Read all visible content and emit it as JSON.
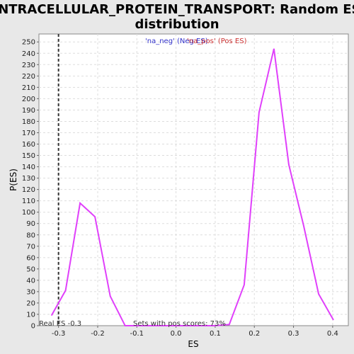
{
  "chart_data": {
    "type": "line",
    "title_line1": "INTRACELLULAR_PROTEIN_TRANSPORT: Random ES",
    "title_line2": "distribution",
    "xlabel": "ES",
    "ylabel": "P(ES)",
    "xlim": [
      -0.35,
      0.44
    ],
    "ylim": [
      0,
      257
    ],
    "xticks": [
      -0.3,
      -0.2,
      -0.1,
      0.0,
      0.1,
      0.2,
      0.3,
      0.4
    ],
    "xtick_labels": [
      "-0.3",
      "-0.2",
      "-0.1",
      "0.0",
      "0.1",
      "0.2",
      "0.3",
      "0.4"
    ],
    "yticks": [
      0,
      10,
      20,
      30,
      40,
      50,
      60,
      70,
      80,
      90,
      100,
      110,
      120,
      130,
      140,
      150,
      160,
      170,
      180,
      190,
      200,
      210,
      220,
      230,
      240,
      250
    ],
    "grid": true,
    "legend_placement": "top-center",
    "legend": [
      {
        "label": "'na_neg' (Neg ES)",
        "color": "#3333cc"
      },
      {
        "label": "'na_pos' (Pos ES)",
        "color": "#cc3333"
      }
    ],
    "series": [
      {
        "color": "#e040fb",
        "x": [
          -0.318,
          -0.282,
          -0.245,
          -0.207,
          -0.168,
          -0.13,
          -0.092,
          -0.054,
          -0.016,
          0.022,
          0.06,
          0.098,
          0.136,
          0.174,
          0.212,
          0.25,
          0.288,
          0.326,
          0.364,
          0.402
        ],
        "y": [
          9,
          31,
          108,
          96,
          26,
          0,
          0,
          0,
          0,
          0,
          0,
          0,
          1,
          36,
          188,
          244,
          142,
          88,
          28,
          5
        ]
      }
    ],
    "real_es": -0.3,
    "real_es_label": "Real ES -0.3",
    "pos_scores_label": "Sets with pos scores: 73%"
  }
}
